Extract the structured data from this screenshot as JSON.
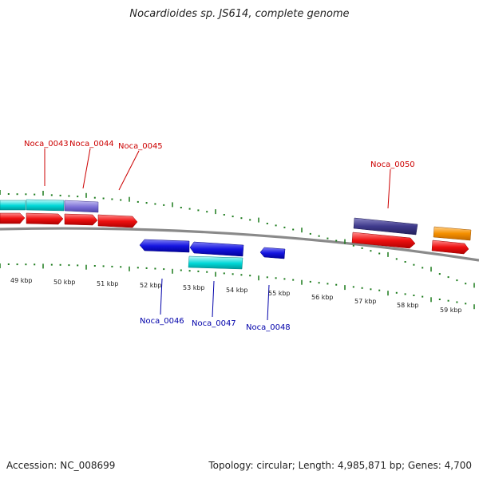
{
  "title": "Nocardioides sp. JS614, complete genome",
  "footer": {
    "accession": "Accession: NC_008699",
    "stats": "Topology: circular; Length: 4,985,871 bp; Genes: 4,700"
  },
  "colors": {
    "top_label": "#cc0000",
    "bottom_label": "#0000aa",
    "tick": "#1a7a1a",
    "backbone": "#888888",
    "cyan": "#00d8d8",
    "lavender": "#7b6fd6",
    "red": "#ee1111",
    "blue": "#1515e0",
    "navy": "#3f3a8c",
    "orange": "#f59000"
  },
  "kbp_labels": [
    "49 kbp",
    "50 kbp",
    "51 kbp",
    "52 kbp",
    "53 kbp",
    "54 kbp",
    "55 kbp",
    "56 kbp",
    "57 kbp",
    "58 kbp",
    "59 kbp"
  ],
  "gene_labels_top": [
    "Noca_0043",
    "Noca_0044",
    "Noca_0045",
    "Noca_0050"
  ],
  "gene_labels_bottom": [
    "Noca_0046",
    "Noca_0047",
    "Noca_0048"
  ]
}
